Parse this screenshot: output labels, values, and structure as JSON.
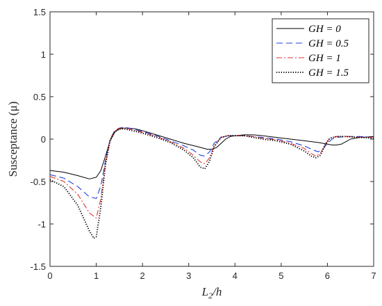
{
  "chart_data": {
    "type": "line",
    "xlabel": "L",
    "xlabel_sub": "2",
    "xlabel_suffix": "/h",
    "ylabel": "Susceptance (μ)",
    "xlim": [
      0,
      7
    ],
    "ylim": [
      -1.5,
      1.5
    ],
    "xticks": [
      "0",
      "1",
      "2",
      "3",
      "4",
      "5",
      "6",
      "7"
    ],
    "yticks": [
      "-1.5",
      "-1",
      "-0.5",
      "0",
      "0.5",
      "1",
      "1.5"
    ],
    "grid": false,
    "legend_position": "top-right",
    "series": [
      {
        "name": "GH = 0",
        "color": "#000000",
        "dash": "solid",
        "x": [
          0,
          0.3,
          0.6,
          0.85,
          1.0,
          1.1,
          1.2,
          1.3,
          1.4,
          1.5,
          1.6,
          1.7,
          1.85,
          2.0,
          2.3,
          2.6,
          2.9,
          3.2,
          3.4,
          3.5,
          3.6,
          3.7,
          3.8,
          3.9,
          4.0,
          4.2,
          4.4,
          4.6,
          4.9,
          5.2,
          5.5,
          5.8,
          6.0,
          6.1,
          6.2,
          6.3,
          6.4,
          6.5,
          6.7,
          7.0
        ],
        "y": [
          -0.37,
          -0.39,
          -0.43,
          -0.47,
          -0.45,
          -0.37,
          -0.2,
          -0.02,
          0.08,
          0.12,
          0.13,
          0.13,
          0.12,
          0.1,
          0.05,
          0.0,
          -0.05,
          -0.09,
          -0.12,
          -0.12,
          -0.1,
          -0.05,
          0.0,
          0.03,
          0.04,
          0.05,
          0.05,
          0.04,
          0.02,
          0.0,
          -0.02,
          -0.04,
          -0.06,
          -0.07,
          -0.07,
          -0.06,
          -0.03,
          0.0,
          0.02,
          0.03
        ]
      },
      {
        "name": "GH = 0.5",
        "color": "#1f3fe0",
        "dash": "dashed",
        "x": [
          0,
          0.3,
          0.6,
          0.85,
          1.0,
          1.1,
          1.2,
          1.3,
          1.4,
          1.5,
          1.6,
          1.7,
          1.85,
          2.0,
          2.3,
          2.6,
          2.9,
          3.1,
          3.25,
          3.35,
          3.45,
          3.55,
          3.7,
          3.85,
          4.0,
          4.2,
          4.4,
          4.6,
          4.9,
          5.2,
          5.5,
          5.7,
          5.8,
          5.9,
          6.0,
          6.1,
          6.2,
          6.4,
          6.7,
          7.0
        ],
        "y": [
          -0.42,
          -0.46,
          -0.56,
          -0.68,
          -0.7,
          -0.55,
          -0.25,
          0.0,
          0.1,
          0.13,
          0.14,
          0.13,
          0.11,
          0.09,
          0.04,
          -0.02,
          -0.08,
          -0.13,
          -0.19,
          -0.2,
          -0.15,
          -0.05,
          0.02,
          0.04,
          0.04,
          0.04,
          0.03,
          0.02,
          0.0,
          -0.03,
          -0.08,
          -0.13,
          -0.15,
          -0.12,
          -0.05,
          0.0,
          0.02,
          0.03,
          0.03,
          0.02
        ]
      },
      {
        "name": "GH = 1",
        "color": "#e0342c",
        "dash": "dashdot",
        "x": [
          0,
          0.3,
          0.6,
          0.85,
          1.0,
          1.1,
          1.2,
          1.3,
          1.4,
          1.5,
          1.6,
          1.7,
          1.85,
          2.0,
          2.3,
          2.6,
          2.9,
          3.1,
          3.25,
          3.35,
          3.45,
          3.55,
          3.7,
          3.85,
          4.0,
          4.2,
          4.4,
          4.6,
          4.9,
          5.2,
          5.5,
          5.65,
          5.75,
          5.85,
          5.95,
          6.05,
          6.2,
          6.4,
          6.7,
          7.0
        ],
        "y": [
          -0.44,
          -0.5,
          -0.65,
          -0.87,
          -0.93,
          -0.7,
          -0.28,
          -0.01,
          0.1,
          0.13,
          0.13,
          0.12,
          0.1,
          0.08,
          0.03,
          -0.03,
          -0.11,
          -0.19,
          -0.27,
          -0.29,
          -0.22,
          -0.08,
          0.02,
          0.04,
          0.04,
          0.04,
          0.03,
          0.01,
          -0.01,
          -0.05,
          -0.11,
          -0.17,
          -0.2,
          -0.17,
          -0.06,
          0.01,
          0.03,
          0.03,
          0.02,
          0.02
        ]
      },
      {
        "name": "GH = 1.5",
        "color": "#000000",
        "dash": "dotted",
        "x": [
          0,
          0.3,
          0.6,
          0.85,
          0.95,
          1.0,
          1.1,
          1.2,
          1.3,
          1.4,
          1.5,
          1.6,
          1.7,
          1.85,
          2.0,
          2.3,
          2.6,
          2.9,
          3.1,
          3.25,
          3.35,
          3.45,
          3.55,
          3.7,
          3.85,
          4.0,
          4.2,
          4.4,
          4.6,
          4.9,
          5.2,
          5.5,
          5.65,
          5.75,
          5.85,
          5.95,
          6.05,
          6.2,
          6.4,
          6.7,
          7.0
        ],
        "y": [
          -0.48,
          -0.56,
          -0.78,
          -1.08,
          -1.17,
          -1.15,
          -0.8,
          -0.3,
          -0.02,
          0.09,
          0.12,
          0.12,
          0.11,
          0.09,
          0.07,
          0.02,
          -0.04,
          -0.13,
          -0.22,
          -0.33,
          -0.35,
          -0.26,
          -0.09,
          0.02,
          0.04,
          0.04,
          0.04,
          0.02,
          0.0,
          -0.02,
          -0.06,
          -0.14,
          -0.2,
          -0.22,
          -0.19,
          -0.07,
          0.01,
          0.03,
          0.03,
          0.02,
          0.01
        ]
      }
    ]
  }
}
